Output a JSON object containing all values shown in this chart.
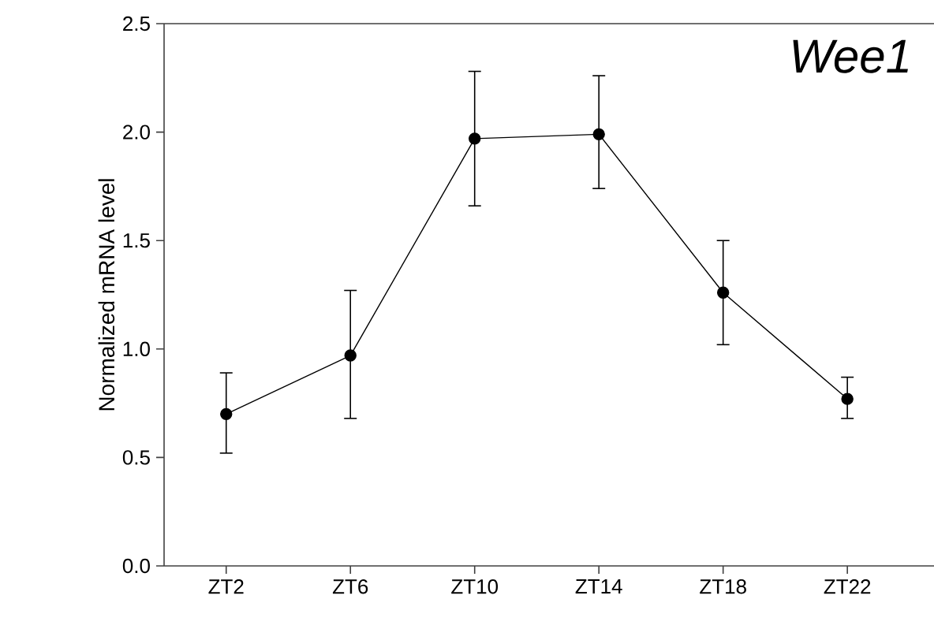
{
  "chart_data": {
    "type": "line",
    "title": "Wee1",
    "ylabel": "Normalized mRNA level",
    "categories": [
      "ZT2",
      "ZT6",
      "ZT10",
      "ZT14",
      "ZT18",
      "ZT22"
    ],
    "series": [
      {
        "color": "#000000",
        "values": [
          0.7,
          0.97,
          1.97,
          1.99,
          1.26,
          0.77
        ],
        "errors": [
          [
            0.52,
            0.89
          ],
          [
            0.68,
            1.27
          ],
          [
            1.66,
            2.28
          ],
          [
            1.74,
            2.26
          ],
          [
            1.02,
            1.5
          ],
          [
            0.68,
            0.87
          ]
        ]
      }
    ],
    "ylim": [
      0,
      2.5
    ],
    "yticks": [
      {
        "value": 0,
        "label": "0.0"
      },
      {
        "value": 0.5,
        "label": "0.5"
      },
      {
        "value": 1,
        "label": "1.0"
      },
      {
        "value": 1.5,
        "label": "1.5"
      },
      {
        "value": 2,
        "label": "2.0"
      },
      {
        "value": 2.5,
        "label": "2.5"
      }
    ],
    "marker": "circle",
    "line_style": "solid"
  }
}
